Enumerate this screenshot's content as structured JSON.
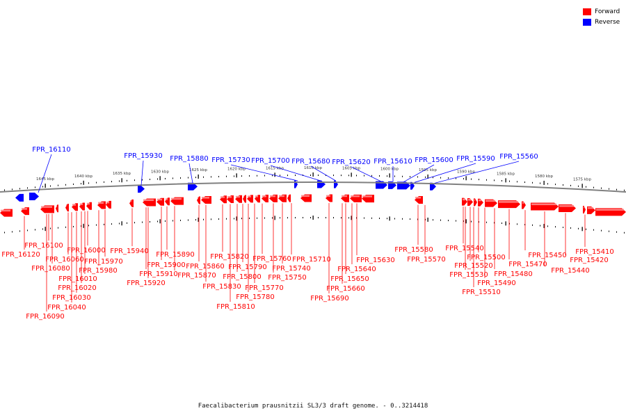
{
  "legend": [
    {
      "label": "Forward",
      "color": "#ff0000"
    },
    {
      "label": "Reverse",
      "color": "#0000ff"
    }
  ],
  "caption": "Faecalibacterium prausnitzii SL3/3 draft genome. - 0..3214418",
  "colors": {
    "forward": "#ff0000",
    "reverse": "#0000ff",
    "backbone": "#808080",
    "tick": "#000000"
  },
  "scale_ticks": [
    "1645 kbp",
    "1640 kbp",
    "1635 kbp",
    "1630 kbp",
    "1625 kbp",
    "1620 kbp",
    "1615 kbp",
    "1610 kbp",
    "1605 kbp",
    "1600 kbp",
    "1595 kbp",
    "1590 kbp",
    "1585 kbp",
    "1580 kbp",
    "1575 kbp"
  ],
  "reverse_labels": [
    "FPR_16110",
    "FPR_15930",
    "FPR_15880",
    "FPR_15730",
    "FPR_15700",
    "FPR_15680",
    "FPR_15620",
    "FPR_15610",
    "FPR_15600",
    "FPR_15590",
    "FPR_15560"
  ],
  "forward_labels": [
    "FPR_16120",
    "FPR_16100",
    "FPR_16080",
    "FPR_16090",
    "FPR_16060",
    "FPR_16040",
    "FPR_16030",
    "FPR_16020",
    "FPR_16010",
    "FPR_16000",
    "FPR_15980",
    "FPR_15970",
    "FPR_15940",
    "FPR_15920",
    "FPR_15910",
    "FPR_15900",
    "FPR_15890",
    "FPR_15870",
    "FPR_15860",
    "FPR_15830",
    "FPR_15820",
    "FPR_15810",
    "FPR_15800",
    "FPR_15790",
    "FPR_15780",
    "FPR_15770",
    "FPR_15760",
    "FPR_15750",
    "FPR_15740",
    "FPR_15710",
    "FPR_15690",
    "FPR_15660",
    "FPR_15650",
    "FPR_15640",
    "FPR_15630",
    "FPR_15580",
    "FPR_15570",
    "FPR_15540",
    "FPR_15530",
    "FPR_15520",
    "FPR_15510",
    "FPR_15500",
    "FPR_15490",
    "FPR_15480",
    "FPR_15470",
    "FPR_15450",
    "FPR_15440",
    "FPR_15420",
    "FPR_15410"
  ]
}
